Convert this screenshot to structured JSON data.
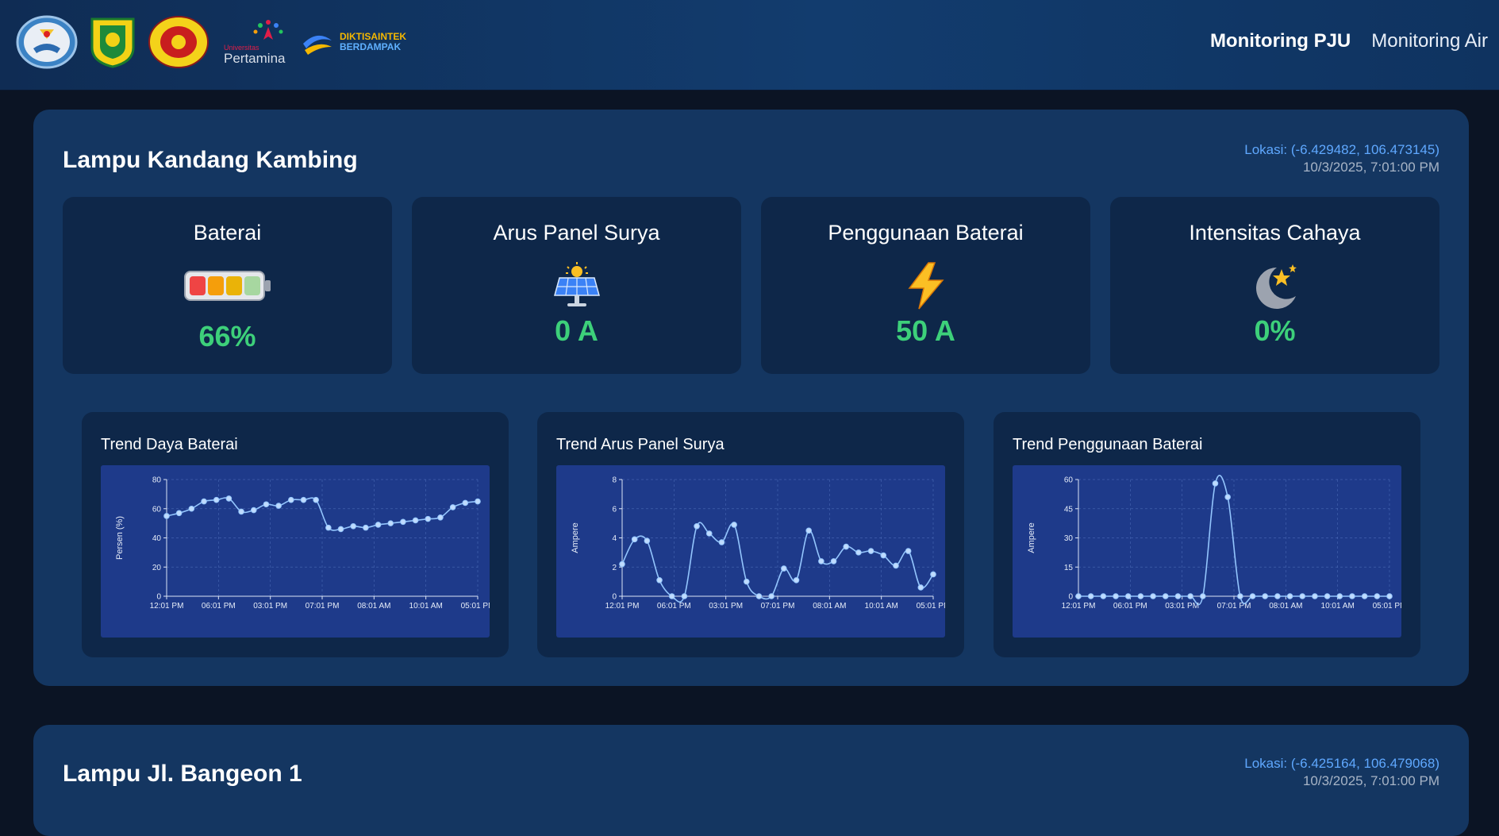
{
  "header": {
    "logos": [
      "kemendikbud-logo",
      "kabupaten-bogor-logo",
      "university-seal-logo",
      "universitas-pertamina-logo",
      "diktisaintek-berdampak-logo"
    ],
    "pertamina_small": "Universitas",
    "pertamina_text": "Pertamina",
    "dikti_line1": "DIKTISAINTEK",
    "dikti_line2": "BERDAMPAK",
    "nav": [
      {
        "label": "Monitoring PJU"
      },
      {
        "label": "Monitoring Air"
      }
    ]
  },
  "stations": [
    {
      "title": "Lampu Kandang Kambing",
      "location": "Lokasi: (-6.429482, 106.473145)",
      "timestamp": "10/3/2025, 7:01:00 PM",
      "stats": [
        {
          "label": "Baterai",
          "icon": "battery-icon",
          "value": "66%"
        },
        {
          "label": "Arus Panel Surya",
          "icon": "solar-panel-icon",
          "value": "0 A"
        },
        {
          "label": "Penggunaan Baterai",
          "icon": "lightning-icon",
          "value": "50 A"
        },
        {
          "label": "Intensitas Cahaya",
          "icon": "moon-star-icon",
          "value": "0%"
        }
      ]
    },
    {
      "title": "Lampu Jl. Bangeon 1",
      "location": "Lokasi: (-6.425164, 106.479068)",
      "timestamp": "10/3/2025, 7:01:00 PM"
    }
  ],
  "colors": {
    "accent_green": "#3dd07a",
    "plot_bg": "#1e3a8a",
    "line": "#93c5fd"
  },
  "chart_data": [
    {
      "type": "line",
      "title": "Trend Daya Baterai",
      "ylabel": "Persen (%)",
      "xlabel": "",
      "ylim": [
        0,
        80
      ],
      "yticks": [
        0,
        20,
        40,
        60,
        80
      ],
      "xticks": [
        "12:01 PM",
        "06:01 PM",
        "03:01 PM",
        "07:01 PM",
        "08:01 AM",
        "10:01 AM",
        "05:01 PM"
      ],
      "values": [
        55,
        57,
        60,
        65,
        66,
        67,
        58,
        59,
        63,
        62,
        66,
        66,
        66,
        47,
        46,
        48,
        47,
        49,
        50,
        51,
        52,
        53,
        54,
        61,
        64,
        65
      ]
    },
    {
      "type": "line",
      "title": "Trend Arus Panel Surya",
      "ylabel": "Ampere",
      "xlabel": "",
      "ylim": [
        0,
        8
      ],
      "yticks": [
        0,
        2,
        4,
        6,
        8
      ],
      "xticks": [
        "12:01 PM",
        "06:01 PM",
        "03:01 PM",
        "07:01 PM",
        "08:01 AM",
        "10:01 AM",
        "05:01 PM"
      ],
      "values": [
        2.2,
        3.9,
        3.8,
        1.1,
        0,
        0,
        4.8,
        4.3,
        3.7,
        4.9,
        1.0,
        0,
        0,
        1.9,
        1.1,
        4.5,
        2.4,
        2.4,
        3.4,
        3.0,
        3.1,
        2.8,
        2.1,
        3.1,
        0.6,
        1.5
      ]
    },
    {
      "type": "line",
      "title": "Trend Penggunaan Baterai",
      "ylabel": "Ampere",
      "xlabel": "",
      "ylim": [
        0,
        60
      ],
      "yticks": [
        0,
        15,
        30,
        45,
        60
      ],
      "xticks": [
        "12:01 PM",
        "06:01 PM",
        "03:01 PM",
        "07:01 PM",
        "08:01 AM",
        "10:01 AM",
        "05:01 PM"
      ],
      "values": [
        0,
        0,
        0,
        0,
        0,
        0,
        0,
        0,
        0,
        0,
        0,
        58,
        51,
        0,
        0,
        0,
        0,
        0,
        0,
        0,
        0,
        0,
        0,
        0,
        0,
        0
      ]
    }
  ]
}
